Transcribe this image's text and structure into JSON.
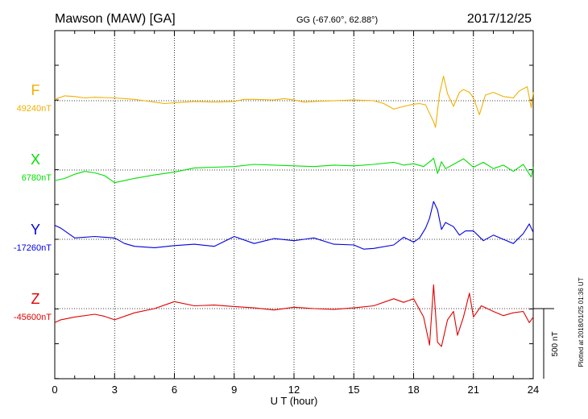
{
  "header": {
    "station": "Mawson (MAW)  [GA]",
    "coords": "GG (-67.60°,  62.88°)",
    "date": "2017/12/25"
  },
  "footer": {
    "plotted": "Plotted at 2018/01/25 01:36 UT"
  },
  "scale_bar": {
    "label": "500 nT",
    "value_nT": 500
  },
  "colors": {
    "F": "#f0b000",
    "X": "#00e000",
    "Y": "#0000e0",
    "Z": "#e00000",
    "axis": "#000000"
  },
  "chart_data": {
    "type": "line",
    "xlabel": "U T (hour)",
    "xlim": [
      0,
      24
    ],
    "xticks": [
      "0",
      "3",
      "6",
      "9",
      "12",
      "15",
      "18",
      "21",
      "24"
    ],
    "grid": true,
    "series": [
      {
        "name": "F",
        "baseline_label": "49240nT",
        "unit": "nT",
        "x": [
          0,
          0.5,
          1,
          1.5,
          2,
          3,
          4,
          4.5,
          5,
          5.5,
          6,
          7,
          8,
          9,
          9.5,
          10,
          11,
          11.5,
          12,
          12.5,
          13,
          14,
          15,
          16,
          16.5,
          17,
          17.5,
          18,
          18.3,
          18.6,
          18.8,
          19,
          19.1,
          19.3,
          19.5,
          19.7,
          20,
          20.3,
          20.5,
          20.8,
          21,
          21.3,
          21.6,
          22,
          22.5,
          23,
          23.3,
          23.7,
          23.9,
          24
        ],
        "values": [
          10,
          35,
          30,
          20,
          25,
          20,
          10,
          0,
          -10,
          -20,
          -15,
          -5,
          -10,
          -5,
          10,
          10,
          5,
          15,
          5,
          -10,
          -5,
          0,
          5,
          0,
          -20,
          -60,
          -40,
          -25,
          -20,
          -30,
          -90,
          -150,
          -190,
          50,
          175,
          50,
          -40,
          60,
          80,
          60,
          20,
          -100,
          40,
          60,
          30,
          20,
          70,
          100,
          -50,
          60
        ]
      },
      {
        "name": "X",
        "baseline_label": "6780nT",
        "unit": "nT",
        "x": [
          0,
          0.5,
          1,
          1.5,
          2,
          2.5,
          3,
          3.5,
          4,
          5,
          6,
          7,
          8,
          9,
          10,
          11,
          12,
          13,
          14,
          15,
          16,
          17,
          17.5,
          18,
          18.5,
          18.9,
          19,
          19.2,
          19.4,
          19.6,
          20,
          20.5,
          21,
          21.5,
          22,
          22.5,
          23,
          23.5,
          23.9,
          24
        ],
        "values": [
          -75,
          -60,
          -30,
          -10,
          -20,
          -40,
          -90,
          -75,
          -60,
          -35,
          -15,
          15,
          20,
          25,
          40,
          35,
          30,
          25,
          35,
          30,
          40,
          55,
          35,
          45,
          25,
          70,
          85,
          -25,
          60,
          10,
          40,
          80,
          20,
          55,
          10,
          35,
          -10,
          40,
          -50,
          20
        ]
      },
      {
        "name": "Y",
        "baseline_label": "-17260nT",
        "unit": "nT",
        "x": [
          0,
          0.3,
          1,
          2,
          3,
          3.5,
          4,
          5,
          6,
          7,
          8,
          9,
          10,
          11,
          12,
          13,
          14,
          15,
          15.5,
          16,
          17,
          17.5,
          18,
          18.3,
          18.6,
          18.8,
          19,
          19.2,
          19.4,
          19.6,
          20,
          20.3,
          20.6,
          21,
          21.5,
          22,
          22.5,
          23,
          23.5,
          23.8,
          24
        ],
        "values": [
          100,
          80,
          10,
          20,
          10,
          -30,
          -50,
          -60,
          -45,
          -35,
          -50,
          20,
          -30,
          5,
          -10,
          10,
          -35,
          -40,
          -70,
          -65,
          -40,
          15,
          -20,
          10,
          80,
          150,
          270,
          210,
          70,
          120,
          90,
          30,
          60,
          60,
          -10,
          30,
          0,
          -30,
          40,
          110,
          50
        ]
      },
      {
        "name": "Z",
        "baseline_label": "-45600nT",
        "unit": "nT",
        "x": [
          0,
          0.3,
          1,
          2,
          2.5,
          3,
          4,
          5,
          6,
          7,
          8,
          9,
          10,
          11,
          12,
          13,
          14,
          15,
          16,
          17,
          17.5,
          18,
          18.5,
          18.8,
          19,
          19.2,
          19.4,
          19.7,
          20,
          20.2,
          20.5,
          20.8,
          21,
          21.4,
          22,
          22.5,
          23,
          23.5,
          23.8,
          24
        ],
        "values": [
          -100,
          -80,
          -60,
          -40,
          -55,
          -80,
          -30,
          0,
          50,
          20,
          25,
          15,
          5,
          -10,
          10,
          0,
          -5,
          5,
          20,
          70,
          45,
          70,
          -60,
          -260,
          170,
          -240,
          -270,
          -80,
          -20,
          -190,
          -60,
          110,
          -60,
          20,
          -20,
          -50,
          -30,
          -20,
          -100,
          -60
        ]
      }
    ]
  }
}
